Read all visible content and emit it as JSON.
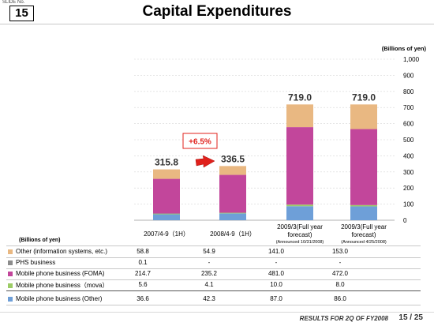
{
  "slide": {
    "label": "SLIDE No.",
    "number": "15",
    "title": "Capital Expenditures"
  },
  "chart_data": {
    "type": "bar",
    "stacked": true,
    "unit_label": "(Billions of yen)",
    "ylim": [
      0,
      1000
    ],
    "yticks": [
      "0",
      "100",
      "200",
      "300",
      "400",
      "500",
      "600",
      "700",
      "800",
      "900",
      "1,000"
    ],
    "categories": [
      {
        "line1": "2007/4-9（1H）",
        "line2": "",
        "note": ""
      },
      {
        "line1": "2008/4-9（1H）",
        "line2": "",
        "note": ""
      },
      {
        "line1": "2009/3(Full year",
        "line2": "forecast)",
        "note": "(Announced 10/31/2008)"
      },
      {
        "line1": "2009/3(Full year",
        "line2": "forecast)",
        "note": "(Announced 4/25/2008)"
      }
    ],
    "totals": [
      "315.8",
      "336.5",
      "719.0",
      "719.0"
    ],
    "total_values": [
      315.8,
      336.5,
      719.0,
      719.0
    ],
    "series": [
      {
        "name": "Mobile phone business (Other)",
        "color": "#6e9fd8",
        "values": [
          36.6,
          42.3,
          87.0,
          86.0
        ],
        "labels": [
          "36.6",
          "42.3",
          "87.0",
          "86.0"
        ]
      },
      {
        "name": "Mobile phone business（mova）",
        "color": "#9ccc66",
        "values": [
          5.6,
          4.1,
          10.0,
          8.0
        ],
        "labels": [
          "5.6",
          "4.1",
          "10.0",
          "8.0"
        ]
      },
      {
        "name": "PHS business",
        "color": "#8c8c8c",
        "values": [
          0.1,
          0,
          0,
          0
        ],
        "labels": [
          "0.1",
          "-",
          "-",
          "-"
        ]
      },
      {
        "name": "Mobile phone business (FOMA)",
        "color": "#c2469b",
        "values": [
          214.7,
          235.2,
          481.0,
          472.0
        ],
        "labels": [
          "214.7",
          "235.2",
          "481.0",
          "472.0"
        ]
      },
      {
        "name": "Other (information systems, etc.)",
        "color": "#e9b882",
        "values": [
          58.8,
          54.9,
          141.0,
          153.0
        ],
        "labels": [
          "58.8",
          "54.9",
          "141.0",
          "153.0"
        ]
      }
    ],
    "table_row_order": [
      4,
      2,
      3,
      1,
      0
    ],
    "growth_callout": "+6.5%",
    "grid": true,
    "colors": {
      "callout_border": "#e0201b",
      "arrow": "#e0201b",
      "callout_text": "#e0201b"
    }
  },
  "footer": {
    "text": "RESULTS FOR 2Q OF FY2008",
    "page": "15 / 25"
  }
}
